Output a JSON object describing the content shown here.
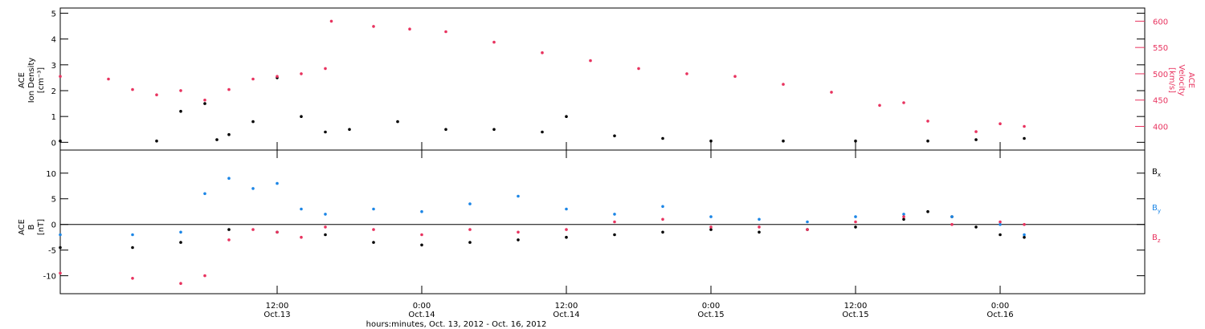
{
  "chart_data": [
    {
      "type": "scatter",
      "panel": "top",
      "ylabel_left": [
        "ACE",
        "Ion Density",
        "[cm⁻³]"
      ],
      "ylabel_right": [
        "ACE",
        "Velocity",
        "[km/s]"
      ],
      "left_ylim": [
        -0.3,
        5.2
      ],
      "left_ticks": [
        "0",
        "1",
        "2",
        "3",
        "4",
        "5"
      ],
      "right_ylim": [
        355,
        625
      ],
      "right_ticks": [
        "400",
        "450",
        "500",
        "550",
        "600"
      ],
      "series": [
        {
          "axis": "left",
          "color": "#000000",
          "x": [
            "2012-10-12T18:00",
            "2012-10-13T02:00",
            "2012-10-13T04:00",
            "2012-10-13T06:00",
            "2012-10-13T07:00",
            "2012-10-13T08:00",
            "2012-10-13T10:00",
            "2012-10-13T12:00",
            "2012-10-13T14:00",
            "2012-10-13T16:00",
            "2012-10-13T18:00",
            "2012-10-13T22:00",
            "2012-10-14T02:00",
            "2012-10-14T06:00",
            "2012-10-14T10:00",
            "2012-10-14T12:00",
            "2012-10-14T16:00",
            "2012-10-14T20:00",
            "2012-10-15T00:00",
            "2012-10-15T06:00",
            "2012-10-15T12:00",
            "2012-10-15T18:00",
            "2012-10-15T22:00",
            "2012-10-16T02:00"
          ],
          "y": [
            0.05,
            0.05,
            1.2,
            1.5,
            0.1,
            0.3,
            0.8,
            2.5,
            1.0,
            0.4,
            0.5,
            0.8,
            0.5,
            0.5,
            0.4,
            1.0,
            0.25,
            0.15,
            0.05,
            0.05,
            0.05,
            0.05,
            0.1,
            0.15
          ]
        },
        {
          "axis": "right",
          "color": "#e8335f",
          "x": [
            "2012-10-12T18:00",
            "2012-10-12T22:00",
            "2012-10-13T00:00",
            "2012-10-13T02:00",
            "2012-10-13T04:00",
            "2012-10-13T06:00",
            "2012-10-13T08:00",
            "2012-10-13T10:00",
            "2012-10-13T12:00",
            "2012-10-13T14:00",
            "2012-10-13T16:00",
            "2012-10-13T16:30",
            "2012-10-13T20:00",
            "2012-10-13T23:00",
            "2012-10-14T02:00",
            "2012-10-14T06:00",
            "2012-10-14T10:00",
            "2012-10-14T14:00",
            "2012-10-14T18:00",
            "2012-10-14T22:00",
            "2012-10-15T02:00",
            "2012-10-15T06:00",
            "2012-10-15T10:00",
            "2012-10-15T14:00",
            "2012-10-15T16:00",
            "2012-10-15T18:00",
            "2012-10-15T22:00",
            "2012-10-16T00:00",
            "2012-10-16T02:00"
          ],
          "y": [
            495,
            490,
            470,
            460,
            468,
            450,
            470,
            490,
            495,
            500,
            510,
            600,
            590,
            585,
            580,
            560,
            540,
            525,
            510,
            500,
            495,
            480,
            465,
            440,
            445,
            410,
            390,
            405,
            400
          ]
        }
      ]
    },
    {
      "type": "scatter",
      "panel": "bottom",
      "ylabel_left": [
        "ACE",
        "B",
        "[nT]"
      ],
      "left_ylim": [
        -13.5,
        14.5
      ],
      "left_ticks": [
        "-10",
        "-5",
        "0",
        "5",
        "10"
      ],
      "legend_placement": "right",
      "legend": [
        {
          "label": "B",
          "sub": "x",
          "color": "#000000"
        },
        {
          "label": "B",
          "sub": "y",
          "color": "#1c86e6"
        },
        {
          "label": "B",
          "sub": "z",
          "color": "#e8335f"
        }
      ],
      "series": [
        {
          "name": "Bx",
          "color": "#000000",
          "x": [
            "2012-10-12T18:00",
            "2012-10-13T00:00",
            "2012-10-13T04:00",
            "2012-10-13T08:00",
            "2012-10-13T12:00",
            "2012-10-13T16:00",
            "2012-10-13T20:00",
            "2012-10-14T00:00",
            "2012-10-14T04:00",
            "2012-10-14T08:00",
            "2012-10-14T12:00",
            "2012-10-14T16:00",
            "2012-10-14T20:00",
            "2012-10-15T00:00",
            "2012-10-15T04:00",
            "2012-10-15T08:00",
            "2012-10-15T12:00",
            "2012-10-15T16:00",
            "2012-10-15T18:00",
            "2012-10-15T20:00",
            "2012-10-15T22:00",
            "2012-10-16T00:00",
            "2012-10-16T02:00"
          ],
          "y": [
            -4.5,
            -4.5,
            -3.5,
            -1.0,
            -1.5,
            -2.0,
            -3.5,
            -4.0,
            -3.5,
            -3.0,
            -2.5,
            -2.0,
            -1.5,
            -1.0,
            -1.5,
            -1.0,
            -0.5,
            1.0,
            2.5,
            1.5,
            -0.5,
            -2.0,
            -2.5
          ]
        },
        {
          "name": "By",
          "color": "#1c86e6",
          "x": [
            "2012-10-12T18:00",
            "2012-10-13T00:00",
            "2012-10-13T04:00",
            "2012-10-13T06:00",
            "2012-10-13T08:00",
            "2012-10-13T10:00",
            "2012-10-13T12:00",
            "2012-10-13T14:00",
            "2012-10-13T16:00",
            "2012-10-13T20:00",
            "2012-10-14T00:00",
            "2012-10-14T04:00",
            "2012-10-14T08:00",
            "2012-10-14T12:00",
            "2012-10-14T16:00",
            "2012-10-14T20:00",
            "2012-10-15T00:00",
            "2012-10-15T04:00",
            "2012-10-15T08:00",
            "2012-10-15T12:00",
            "2012-10-15T16:00",
            "2012-10-15T20:00",
            "2012-10-16T00:00",
            "2012-10-16T02:00"
          ],
          "y": [
            -2.0,
            -2.0,
            -1.5,
            6.0,
            9.0,
            7.0,
            8.0,
            3.0,
            2.0,
            3.0,
            2.5,
            4.0,
            5.5,
            3.0,
            2.0,
            3.5,
            1.5,
            1.0,
            0.5,
            1.5,
            2.0,
            1.5,
            0.0,
            -2.0
          ]
        },
        {
          "name": "Bz",
          "color": "#e8335f",
          "x": [
            "2012-10-12T18:00",
            "2012-10-13T00:00",
            "2012-10-13T04:00",
            "2012-10-13T06:00",
            "2012-10-13T08:00",
            "2012-10-13T10:00",
            "2012-10-13T12:00",
            "2012-10-13T14:00",
            "2012-10-13T16:00",
            "2012-10-13T20:00",
            "2012-10-14T00:00",
            "2012-10-14T04:00",
            "2012-10-14T08:00",
            "2012-10-14T12:00",
            "2012-10-14T16:00",
            "2012-10-14T20:00",
            "2012-10-15T00:00",
            "2012-10-15T04:00",
            "2012-10-15T08:00",
            "2012-10-15T12:00",
            "2012-10-15T16:00",
            "2012-10-15T20:00",
            "2012-10-16T00:00",
            "2012-10-16T02:00"
          ],
          "y": [
            -9.5,
            -10.5,
            -11.5,
            -10.0,
            -3.0,
            -1.0,
            -1.5,
            -2.5,
            -0.5,
            -1.0,
            -2.0,
            -1.0,
            -1.5,
            -1.0,
            0.5,
            1.0,
            -0.5,
            -0.5,
            -1.0,
            0.5,
            1.5,
            0.0,
            0.5,
            0.0
          ]
        }
      ]
    }
  ],
  "x_axis": {
    "xlim": [
      "2012-10-12T18:00",
      "2012-10-16T12:00"
    ],
    "ticks": [
      {
        "at": "2012-10-13T12:00",
        "time": "12:00",
        "date": "Oct.13"
      },
      {
        "at": "2012-10-14T00:00",
        "time": "0:00",
        "date": "Oct.14"
      },
      {
        "at": "2012-10-14T12:00",
        "time": "12:00",
        "date": "Oct.14"
      },
      {
        "at": "2012-10-15T00:00",
        "time": "0:00",
        "date": "Oct.15"
      },
      {
        "at": "2012-10-15T12:00",
        "time": "12:00",
        "date": "Oct.15"
      },
      {
        "at": "2012-10-16T00:00",
        "time": "0:00",
        "date": "Oct.16"
      }
    ],
    "xlabel": "hours:minutes, Oct. 13, 2012 - Oct. 16, 2012"
  }
}
